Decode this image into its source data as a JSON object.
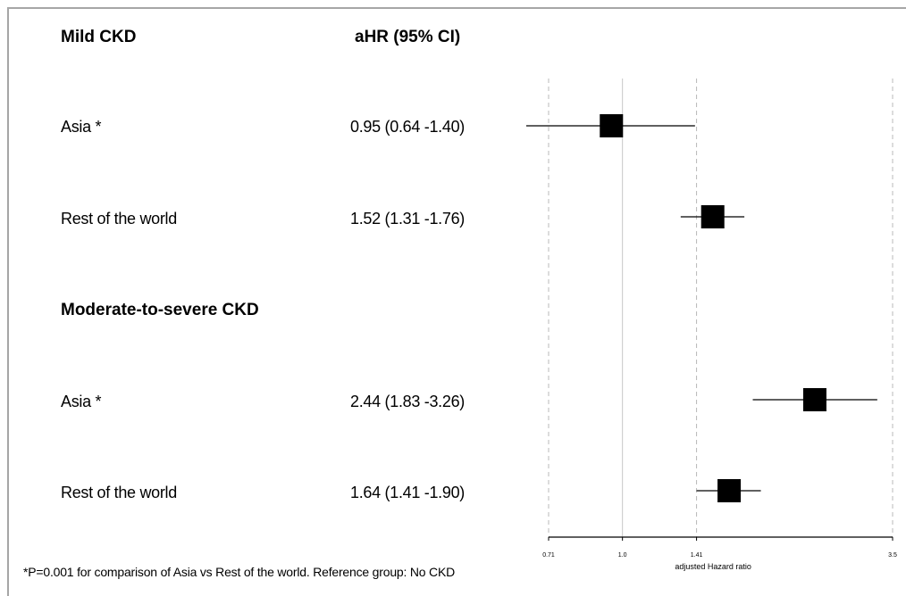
{
  "headers": {
    "group1": "Mild CKD",
    "group2": "Moderate-to-severe CKD",
    "estimate": "aHR (95% CI)"
  },
  "footnote": "*P=0.001 for comparison of Asia vs Rest of the world.  Reference group: No CKD",
  "chart_data": {
    "type": "forest",
    "xlabel": "adjusted Hazard ratio",
    "x_scale": "log",
    "x_ticks": [
      0.71,
      1.0,
      1.41,
      3.5
    ],
    "x_tick_labels": [
      "0.71",
      "1.0",
      "1.41",
      "3.5"
    ],
    "reference_line": 1.0,
    "dashed_lines": [
      0.71,
      1.41,
      3.5
    ],
    "marker": "square",
    "marker_color": "#000000",
    "rows": [
      {
        "label": "Asia *",
        "hr": 0.95,
        "lower": 0.64,
        "upper": 1.4,
        "text": "0.95 (0.64 -1.40)"
      },
      {
        "label": "Rest of the world",
        "hr": 1.52,
        "lower": 1.31,
        "upper": 1.76,
        "text": "1.52 (1.31 -1.76)"
      },
      {
        "label": "Asia *",
        "hr": 2.44,
        "lower": 1.83,
        "upper": 3.26,
        "text": "2.44 (1.83 -3.26)"
      },
      {
        "label": "Rest of the world",
        "hr": 1.64,
        "lower": 1.41,
        "upper": 1.9,
        "text": "1.64 (1.41 -1.90)"
      }
    ]
  }
}
